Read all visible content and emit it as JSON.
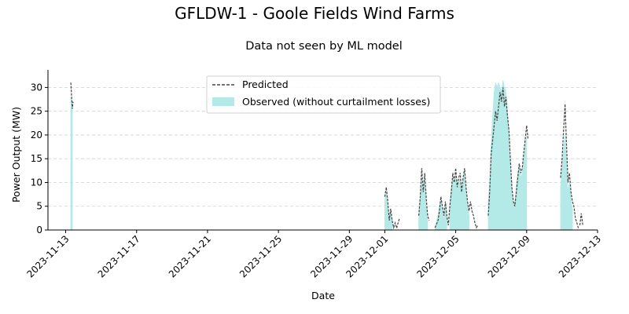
{
  "chart_data": {
    "type": "area+line",
    "title": "GFLDW-1 - Goole Fields Wind Farms",
    "subtitle": "Data not seen by ML model",
    "xlabel": "Date",
    "ylabel": "Power Output (MW)",
    "ylim": [
      0,
      33.7
    ],
    "xlim": [
      "2023-11-12",
      "2023-12-13"
    ],
    "y_ticks": [
      0,
      5,
      10,
      15,
      20,
      25,
      30
    ],
    "x_ticks": [
      "2023-11-13",
      "2023-11-17",
      "2023-11-21",
      "2023-11-25",
      "2023-11-29",
      "2023-12-01",
      "2023-12-05",
      "2023-12-09",
      "2023-12-13"
    ],
    "grid": "y-dashed",
    "legend_position": "top-center",
    "colors": {
      "observed": "#b3e9e6",
      "predicted": "#444444"
    },
    "series": [
      {
        "name": "Predicted",
        "style": "dashed-line",
        "segments": [
          [
            [
              "2023-11-13T07:00",
              31
            ],
            [
              "2023-11-13T08:00",
              28
            ],
            [
              "2023-11-13T09:00",
              25.5
            ],
            [
              "2023-11-13T10:00",
              27
            ]
          ],
          [
            [
              "2023-12-01T00:00",
              7
            ],
            [
              "2023-12-01T02:00",
              9
            ],
            [
              "2023-12-01T04:00",
              6
            ],
            [
              "2023-12-01T06:00",
              2
            ],
            [
              "2023-12-01T08:00",
              4.5
            ],
            [
              "2023-12-01T10:00",
              2
            ],
            [
              "2023-12-01T12:00",
              0.5
            ],
            [
              "2023-12-01T14:00",
              1.5
            ],
            [
              "2023-12-01T16:00",
              0.4
            ],
            [
              "2023-12-01T18:00",
              1.5
            ],
            [
              "2023-12-01T20:00",
              2.5
            ]
          ],
          [
            [
              "2023-12-02T22:00",
              3
            ],
            [
              "2023-12-03T00:00",
              7
            ],
            [
              "2023-12-03T02:00",
              13
            ],
            [
              "2023-12-03T04:00",
              8
            ],
            [
              "2023-12-03T06:00",
              12
            ],
            [
              "2023-12-03T08:00",
              7
            ],
            [
              "2023-12-03T10:00",
              3
            ],
            [
              "2023-12-03T12:00",
              2
            ]
          ],
          [
            [
              "2023-12-03T20:00",
              0.5
            ],
            [
              "2023-12-04T00:00",
              2
            ],
            [
              "2023-12-04T02:00",
              4
            ],
            [
              "2023-12-04T04:00",
              7
            ],
            [
              "2023-12-04T06:00",
              5
            ],
            [
              "2023-12-04T08:00",
              3
            ],
            [
              "2023-12-04T10:00",
              6
            ],
            [
              "2023-12-04T12:00",
              3
            ],
            [
              "2023-12-04T14:00",
              1
            ],
            [
              "2023-12-04T16:00",
              5
            ],
            [
              "2023-12-04T18:00",
              8
            ],
            [
              "2023-12-04T20:00",
              12
            ],
            [
              "2023-12-04T22:00",
              10
            ],
            [
              "2023-12-05T00:00",
              13
            ],
            [
              "2023-12-05T02:00",
              9
            ],
            [
              "2023-12-05T04:00",
              11
            ],
            [
              "2023-12-05T06:00",
              12
            ],
            [
              "2023-12-05T08:00",
              8
            ],
            [
              "2023-12-05T10:00",
              11
            ],
            [
              "2023-12-05T12:00",
              13
            ],
            [
              "2023-12-05T14:00",
              9
            ],
            [
              "2023-12-05T16:00",
              6
            ],
            [
              "2023-12-05T18:00",
              4
            ],
            [
              "2023-12-05T20:00",
              6
            ],
            [
              "2023-12-05T22:00",
              4
            ],
            [
              "2023-12-06T00:00",
              3
            ],
            [
              "2023-12-06T02:00",
              1.5
            ],
            [
              "2023-12-06T04:00",
              0.5
            ],
            [
              "2023-12-06T06:00",
              1
            ]
          ],
          [
            [
              "2023-12-06T20:00",
              3
            ],
            [
              "2023-12-06T22:00",
              8
            ],
            [
              "2023-12-07T00:00",
              16
            ],
            [
              "2023-12-07T02:00",
              19
            ],
            [
              "2023-12-07T04:00",
              22
            ],
            [
              "2023-12-07T06:00",
              25
            ],
            [
              "2023-12-07T08:00",
              23
            ],
            [
              "2023-12-07T10:00",
              26
            ],
            [
              "2023-12-07T12:00",
              29
            ],
            [
              "2023-12-07T14:00",
              27
            ],
            [
              "2023-12-07T16:00",
              30
            ],
            [
              "2023-12-07T18:00",
              26
            ],
            [
              "2023-12-07T20:00",
              28
            ],
            [
              "2023-12-07T22:00",
              24
            ],
            [
              "2023-12-08T00:00",
              21
            ],
            [
              "2023-12-08T02:00",
              15
            ],
            [
              "2023-12-08T04:00",
              9
            ],
            [
              "2023-12-08T06:00",
              6
            ],
            [
              "2023-12-08T08:00",
              5
            ],
            [
              "2023-12-08T10:00",
              8
            ],
            [
              "2023-12-08T12:00",
              11
            ],
            [
              "2023-12-08T14:00",
              14
            ],
            [
              "2023-12-08T16:00",
              12
            ],
            [
              "2023-12-08T18:00",
              13
            ],
            [
              "2023-12-08T20:00",
              16
            ],
            [
              "2023-12-08T22:00",
              19
            ],
            [
              "2023-12-09T00:00",
              22
            ],
            [
              "2023-12-09T02:00",
              19
            ]
          ],
          [
            [
              "2023-12-10T22:00",
              11
            ],
            [
              "2023-12-11T00:00",
              15
            ],
            [
              "2023-12-11T02:00",
              21
            ],
            [
              "2023-12-11T04:00",
              26.5
            ],
            [
              "2023-12-11T06:00",
              18
            ],
            [
              "2023-12-11T08:00",
              10
            ],
            [
              "2023-12-11T10:00",
              12
            ],
            [
              "2023-12-11T12:00",
              8
            ],
            [
              "2023-12-11T14:00",
              6
            ],
            [
              "2023-12-11T16:00",
              5
            ],
            [
              "2023-12-11T18:00",
              2.5
            ],
            [
              "2023-12-11T20:00",
              1.5
            ],
            [
              "2023-12-11T22:00",
              0.4
            ]
          ],
          [
            [
              "2023-12-12T00:00",
              1
            ],
            [
              "2023-12-12T02:00",
              3.5
            ],
            [
              "2023-12-12T04:00",
              1
            ]
          ]
        ]
      },
      {
        "name": "Observed (without curtailment losses)",
        "style": "filled-area",
        "segments": [
          [
            [
              "2023-11-13T07:00",
              28
            ],
            [
              "2023-11-13T09:00",
              26
            ]
          ],
          [
            [
              "2023-12-01T00:00",
              6
            ],
            [
              "2023-12-01T02:00",
              8
            ],
            [
              "2023-12-01T04:00",
              5
            ],
            [
              "2023-12-01T06:00",
              2
            ],
            [
              "2023-12-01T08:00",
              4
            ],
            [
              "2023-12-01T10:00",
              1.5
            ]
          ],
          [
            [
              "2023-12-02T22:00",
              2
            ],
            [
              "2023-12-03T00:00",
              6
            ],
            [
              "2023-12-03T02:00",
              11
            ],
            [
              "2023-12-03T04:00",
              7
            ],
            [
              "2023-12-03T06:00",
              10
            ],
            [
              "2023-12-03T08:00",
              5
            ],
            [
              "2023-12-03T10:00",
              2
            ]
          ],
          [
            [
              "2023-12-03T20:00",
              0.5
            ],
            [
              "2023-12-04T00:00",
              3
            ],
            [
              "2023-12-04T02:00",
              5
            ],
            [
              "2023-12-04T04:00",
              7
            ],
            [
              "2023-12-04T06:00",
              4
            ],
            [
              "2023-12-04T08:00",
              2
            ],
            [
              "2023-12-04T10:00",
              5
            ],
            [
              "2023-12-04T12:00",
              3
            ]
          ],
          [
            [
              "2023-12-04T16:00",
              5
            ],
            [
              "2023-12-04T18:00",
              9
            ],
            [
              "2023-12-04T20:00",
              11
            ],
            [
              "2023-12-04T22:00",
              9
            ],
            [
              "2023-12-05T00:00",
              12
            ],
            [
              "2023-12-05T02:00",
              8
            ],
            [
              "2023-12-05T04:00",
              10
            ],
            [
              "2023-12-05T06:00",
              11
            ],
            [
              "2023-12-05T08:00",
              7
            ],
            [
              "2023-12-05T10:00",
              10
            ],
            [
              "2023-12-05T12:00",
              12
            ],
            [
              "2023-12-05T14:00",
              8
            ],
            [
              "2023-12-05T16:00",
              5
            ],
            [
              "2023-12-05T18:00",
              3
            ]
          ],
          [
            [
              "2023-12-06T20:00",
              6
            ],
            [
              "2023-12-06T22:00",
              10
            ],
            [
              "2023-12-07T00:00",
              18
            ],
            [
              "2023-12-07T02:00",
              24
            ],
            [
              "2023-12-07T04:00",
              29
            ],
            [
              "2023-12-07T06:00",
              31
            ],
            [
              "2023-12-07T08:00",
              30
            ],
            [
              "2023-12-07T10:00",
              31
            ],
            [
              "2023-12-07T12:00",
              30
            ],
            [
              "2023-12-07T14:00",
              29
            ],
            [
              "2023-12-07T16:00",
              31.5
            ],
            [
              "2023-12-07T18:00",
              30
            ],
            [
              "2023-12-07T20:00",
              29
            ],
            [
              "2023-12-07T22:00",
              25
            ],
            [
              "2023-12-08T00:00",
              20
            ],
            [
              "2023-12-08T02:00",
              13
            ],
            [
              "2023-12-08T04:00",
              8
            ],
            [
              "2023-12-08T06:00",
              5
            ],
            [
              "2023-12-08T08:00",
              6
            ],
            [
              "2023-12-08T10:00",
              9
            ],
            [
              "2023-12-08T12:00",
              12
            ],
            [
              "2023-12-08T14:00",
              13
            ],
            [
              "2023-12-08T16:00",
              11
            ],
            [
              "2023-12-08T18:00",
              12
            ],
            [
              "2023-12-08T20:00",
              15
            ],
            [
              "2023-12-08T22:00",
              18
            ],
            [
              "2023-12-09T00:00",
              20
            ]
          ],
          [
            [
              "2023-12-10T22:00",
              9
            ],
            [
              "2023-12-11T00:00",
              13
            ],
            [
              "2023-12-11T02:00",
              17
            ],
            [
              "2023-12-11T04:00",
              20
            ],
            [
              "2023-12-11T06:00",
              14
            ],
            [
              "2023-12-11T08:00",
              8
            ],
            [
              "2023-12-11T10:00",
              10
            ],
            [
              "2023-12-11T12:00",
              7
            ],
            [
              "2023-12-11T14:00",
              4
            ]
          ]
        ]
      }
    ]
  }
}
